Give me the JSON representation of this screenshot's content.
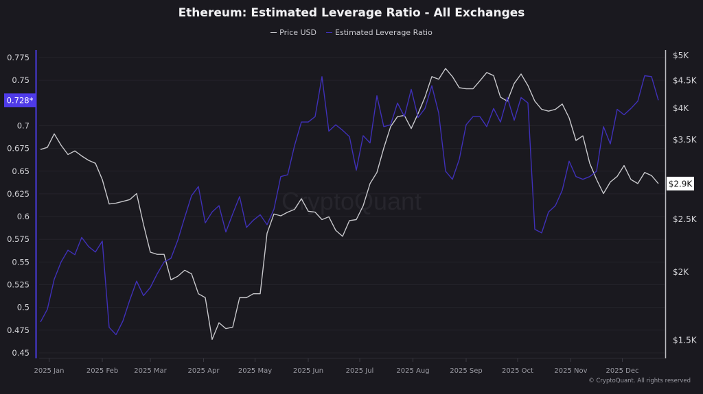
{
  "chart_data": {
    "type": "line",
    "title": "Ethereum: Estimated Leverage Ratio - All Exchanges",
    "legend_position": "top-center",
    "grid": true,
    "x": [
      "2024-12-27",
      "2024-12-31",
      "2025-01-04",
      "2025-01-08",
      "2025-01-12",
      "2025-01-16",
      "2025-01-20",
      "2025-01-24",
      "2025-01-28",
      "2025-02-01",
      "2025-02-05",
      "2025-02-09",
      "2025-02-13",
      "2025-02-17",
      "2025-02-21",
      "2025-02-25",
      "2025-03-01",
      "2025-03-05",
      "2025-03-09",
      "2025-03-13",
      "2025-03-17",
      "2025-03-21",
      "2025-03-25",
      "2025-03-29",
      "2025-04-02",
      "2025-04-06",
      "2025-04-10",
      "2025-04-14",
      "2025-04-18",
      "2025-04-22",
      "2025-04-26",
      "2025-04-30",
      "2025-05-04",
      "2025-05-08",
      "2025-05-12",
      "2025-05-16",
      "2025-05-20",
      "2025-05-24",
      "2025-05-28",
      "2025-06-01",
      "2025-06-05",
      "2025-06-09",
      "2025-06-13",
      "2025-06-17",
      "2025-06-21",
      "2025-06-25",
      "2025-06-29",
      "2025-07-03",
      "2025-07-07",
      "2025-07-11",
      "2025-07-15",
      "2025-07-19",
      "2025-07-23",
      "2025-07-27",
      "2025-07-31",
      "2025-08-04",
      "2025-08-08",
      "2025-08-12",
      "2025-08-16",
      "2025-08-20",
      "2025-08-24",
      "2025-08-28",
      "2025-09-01",
      "2025-09-05",
      "2025-09-09",
      "2025-09-13",
      "2025-09-17",
      "2025-09-21",
      "2025-09-25",
      "2025-09-29",
      "2025-10-03",
      "2025-10-07",
      "2025-10-11",
      "2025-10-15",
      "2025-10-19",
      "2025-10-23",
      "2025-10-27",
      "2025-10-31",
      "2025-11-04",
      "2025-11-08",
      "2025-11-12",
      "2025-11-16",
      "2025-11-20",
      "2025-11-24",
      "2025-11-28",
      "2025-12-02",
      "2025-12-06",
      "2025-12-10",
      "2025-12-14",
      "2025-12-18",
      "2025-12-22"
    ],
    "series": [
      {
        "name": "Price USD",
        "axis": "right",
        "color": "#c8c8cc",
        "values": [
          3350,
          3380,
          3580,
          3410,
          3280,
          3330,
          3260,
          3200,
          3160,
          2950,
          2660,
          2670,
          2690,
          2710,
          2780,
          2440,
          2170,
          2150,
          2150,
          1930,
          1960,
          2010,
          1980,
          1820,
          1790,
          1500,
          1610,
          1570,
          1580,
          1790,
          1790,
          1820,
          1820,
          2350,
          2550,
          2530,
          2570,
          2600,
          2720,
          2580,
          2570,
          2490,
          2520,
          2380,
          2320,
          2480,
          2490,
          2640,
          2900,
          3040,
          3370,
          3690,
          3850,
          3870,
          3660,
          3900,
          4180,
          4560,
          4510,
          4720,
          4560,
          4350,
          4330,
          4330,
          4480,
          4640,
          4580,
          4180,
          4110,
          4430,
          4610,
          4390,
          4110,
          3970,
          3940,
          3970,
          4060,
          3830,
          3480,
          3550,
          3160,
          2950,
          2780,
          2920,
          2990,
          3130,
          2950,
          2900,
          3040,
          3000,
          2900
        ]
      },
      {
        "name": "Estimated Leverage Ratio",
        "axis": "left",
        "color": "#3f30b8",
        "values": [
          0.484,
          0.498,
          0.531,
          0.55,
          0.563,
          0.558,
          0.577,
          0.567,
          0.561,
          0.573,
          0.478,
          0.47,
          0.485,
          0.508,
          0.529,
          0.513,
          0.522,
          0.537,
          0.55,
          0.554,
          0.574,
          0.599,
          0.623,
          0.633,
          0.593,
          0.605,
          0.612,
          0.583,
          0.603,
          0.622,
          0.588,
          0.596,
          0.602,
          0.591,
          0.608,
          0.644,
          0.646,
          0.678,
          0.704,
          0.704,
          0.71,
          0.754,
          0.694,
          0.701,
          0.695,
          0.688,
          0.651,
          0.689,
          0.681,
          0.733,
          0.699,
          0.701,
          0.725,
          0.71,
          0.74,
          0.709,
          0.719,
          0.744,
          0.714,
          0.65,
          0.641,
          0.663,
          0.701,
          0.71,
          0.71,
          0.699,
          0.719,
          0.704,
          0.731,
          0.706,
          0.731,
          0.725,
          0.586,
          0.582,
          0.605,
          0.612,
          0.629,
          0.661,
          0.644,
          0.641,
          0.644,
          0.65,
          0.699,
          0.68,
          0.718,
          0.712,
          0.719,
          0.727,
          0.755,
          0.754,
          0.728
        ]
      }
    ],
    "left_axis": {
      "ticks": [
        "0.45",
        "0.475",
        "0.5",
        "0.525",
        "0.55",
        "0.575",
        "0.6",
        "0.625",
        "0.65",
        "0.675",
        "0.7",
        "0.75",
        "0.775"
      ],
      "range": [
        0.45,
        0.775
      ],
      "color": "#4b3ae0"
    },
    "right_axis": {
      "scale": "log",
      "ticks": [
        {
          "value": 1500,
          "label": "$1.5K"
        },
        {
          "value": 2000,
          "label": "$2K"
        },
        {
          "value": 2500,
          "label": "$2.5K"
        },
        {
          "value": 3500,
          "label": "$3.5K"
        },
        {
          "value": 4000,
          "label": "$4K"
        },
        {
          "value": 4500,
          "label": "$4.5K"
        },
        {
          "value": 5000,
          "label": "$5K"
        }
      ],
      "range": [
        1500,
        5000
      ]
    },
    "x_axis": {
      "ticks": [
        {
          "date": "2025-01-01",
          "label": "2025 Jan"
        },
        {
          "date": "2025-02-01",
          "label": "2025 Feb"
        },
        {
          "date": "2025-03-01",
          "label": "2025 Mar"
        },
        {
          "date": "2025-04-01",
          "label": "2025 Apr"
        },
        {
          "date": "2025-05-01",
          "label": "2025 May"
        },
        {
          "date": "2025-06-01",
          "label": "2025 Jun"
        },
        {
          "date": "2025-07-01",
          "label": "2025 Jul"
        },
        {
          "date": "2025-08-01",
          "label": "2025 Aug"
        },
        {
          "date": "2025-09-01",
          "label": "2025 Sep"
        },
        {
          "date": "2025-10-01",
          "label": "2025 Oct"
        },
        {
          "date": "2025-11-01",
          "label": "2025 Nov"
        },
        {
          "date": "2025-12-01",
          "label": "2025 Dec"
        }
      ]
    },
    "last_value_badges": {
      "left": "0.728*",
      "right": "$2.9K"
    }
  },
  "watermark": "CryptoQuant",
  "footer": "© CryptoQuant. All rights reserved"
}
